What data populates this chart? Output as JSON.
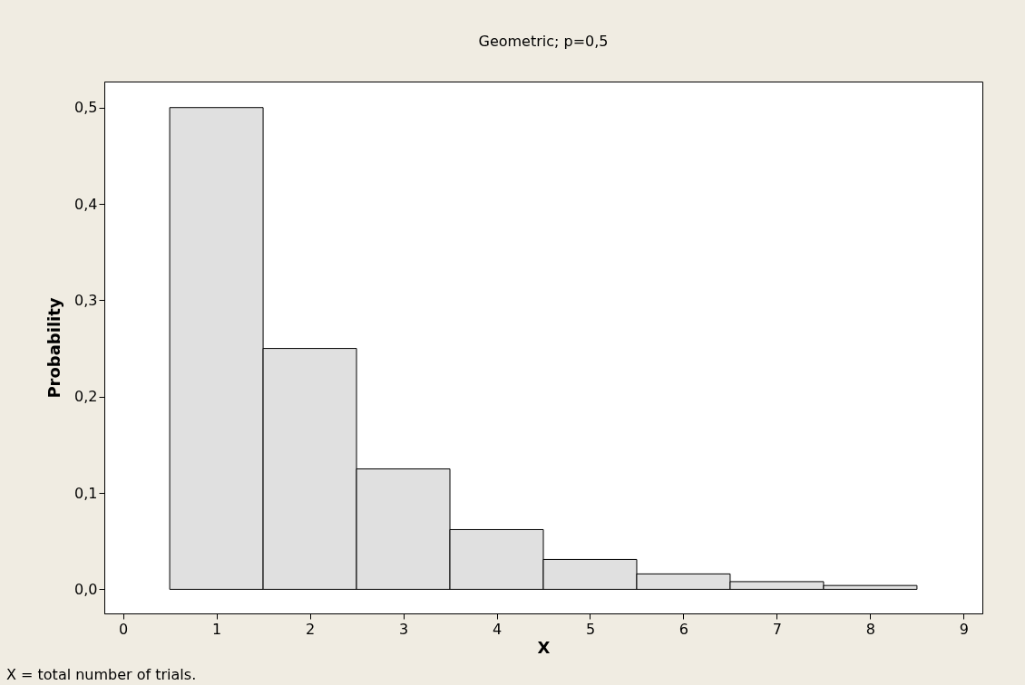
{
  "chart_data": {
    "type": "histogram",
    "title": "Geometric; p=0,5",
    "xlabel": "X",
    "ylabel": "Probability",
    "bins": [
      0.5,
      1.5,
      2.5,
      3.5,
      4.5,
      5.5,
      6.5,
      7.5,
      8.5
    ],
    "values": [
      0.5,
      0.25,
      0.125,
      0.062,
      0.031,
      0.016,
      0.008,
      0.004
    ],
    "color": "#e0e0e0",
    "xlim": [
      -0.2,
      9.2
    ],
    "xticks": [
      0,
      1,
      2,
      3,
      4,
      5,
      6,
      7,
      8,
      9
    ],
    "ylim": [
      -0.025,
      0.527
    ],
    "yticks": [
      {
        "value": 0.0,
        "label": "0,0"
      },
      {
        "value": 0.1,
        "label": "0,1"
      },
      {
        "value": 0.2,
        "label": "0,2"
      },
      {
        "value": 0.3,
        "label": "0,3"
      },
      {
        "value": 0.4,
        "label": "0,4"
      },
      {
        "value": 0.5,
        "label": "0,5"
      }
    ],
    "annotations": [
      "X = total number of trials."
    ]
  }
}
